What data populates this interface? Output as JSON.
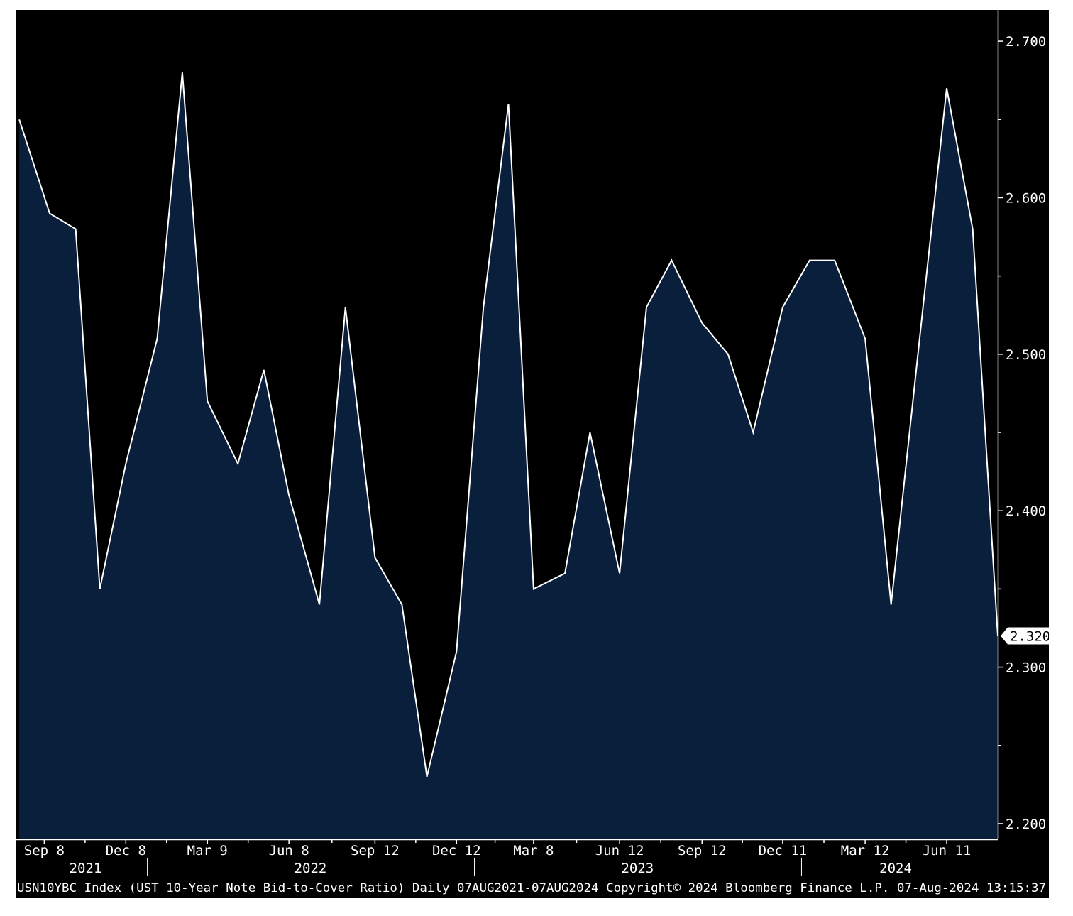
{
  "chart_data": {
    "type": "area",
    "title": "",
    "xlabel": "",
    "ylabel": "",
    "ylim": [
      2.19,
      2.72
    ],
    "y_ticks": [
      "2.200",
      "2.300",
      "2.400",
      "2.500",
      "2.600",
      "2.700"
    ],
    "y_tick_values": [
      2.2,
      2.3,
      2.4,
      2.5,
      2.6,
      2.7
    ],
    "x_ticks": [
      {
        "label": "Sep 8",
        "date": "2021-09-08"
      },
      {
        "label": "Dec 8",
        "date": "2021-12-08"
      },
      {
        "label": "Mar 9",
        "date": "2022-03-09"
      },
      {
        "label": "Jun 8",
        "date": "2022-06-08"
      },
      {
        "label": "Sep 12",
        "date": "2022-09-12"
      },
      {
        "label": "Dec 12",
        "date": "2022-12-12"
      },
      {
        "label": "Mar 8",
        "date": "2023-03-08"
      },
      {
        "label": "Jun 12",
        "date": "2023-06-12"
      },
      {
        "label": "Sep 12",
        "date": "2023-09-12"
      },
      {
        "label": "Dec 11",
        "date": "2023-12-11"
      },
      {
        "label": "Mar 12",
        "date": "2024-03-12"
      },
      {
        "label": "Jun 11",
        "date": "2024-06-11"
      }
    ],
    "year_labels": [
      {
        "label": "2021",
        "date": "2021-10-24"
      },
      {
        "label": "2022",
        "date": "2022-07-02"
      },
      {
        "label": "2023",
        "date": "2023-07-02"
      },
      {
        "label": "2024",
        "date": "2024-04-15"
      }
    ],
    "year_separators": [
      "2022-01-01",
      "2023-01-01",
      "2024-01-01"
    ],
    "x_range": [
      "2021-08-07",
      "2024-08-07"
    ],
    "series": [
      {
        "x": [
          "2021-08-11",
          "2021-09-14",
          "2021-10-13",
          "2021-11-09",
          "2021-12-08",
          "2022-01-12",
          "2022-02-09",
          "2022-03-09",
          "2022-04-12",
          "2022-05-11",
          "2022-06-08",
          "2022-07-12",
          "2022-08-10",
          "2022-09-12",
          "2022-10-12",
          "2022-11-09",
          "2022-12-12",
          "2023-01-11",
          "2023-02-08",
          "2023-03-08",
          "2023-04-12",
          "2023-05-10",
          "2023-06-12",
          "2023-07-12",
          "2023-08-09",
          "2023-09-12",
          "2023-10-11",
          "2023-11-08",
          "2023-12-11",
          "2024-01-10",
          "2024-02-07",
          "2024-03-12",
          "2024-04-10",
          "2024-05-08",
          "2024-06-11",
          "2024-07-10",
          "2024-08-07"
        ],
        "values": [
          2.65,
          2.59,
          2.58,
          2.35,
          2.43,
          2.51,
          2.68,
          2.47,
          2.43,
          2.49,
          2.41,
          2.34,
          2.53,
          2.37,
          2.34,
          2.23,
          2.31,
          2.53,
          2.66,
          2.35,
          2.36,
          2.45,
          2.36,
          2.53,
          2.56,
          2.52,
          2.5,
          2.45,
          2.53,
          2.56,
          2.56,
          2.51,
          2.34,
          2.49,
          2.67,
          2.58,
          2.32
        ]
      }
    ],
    "last_value_label": "2.320",
    "grid": false,
    "line_color": "#ffffff",
    "fill_color": "#0a1f3c",
    "background_color": "#000000"
  },
  "footer": {
    "text": "USN10YBC Index (UST 10-Year Note Bid-to-Cover Ratio)  Daily 07AUG2021-07AUG2024  Copyright© 2024 Bloomberg Finance L.P.  07-Aug-2024 13:15:37"
  }
}
